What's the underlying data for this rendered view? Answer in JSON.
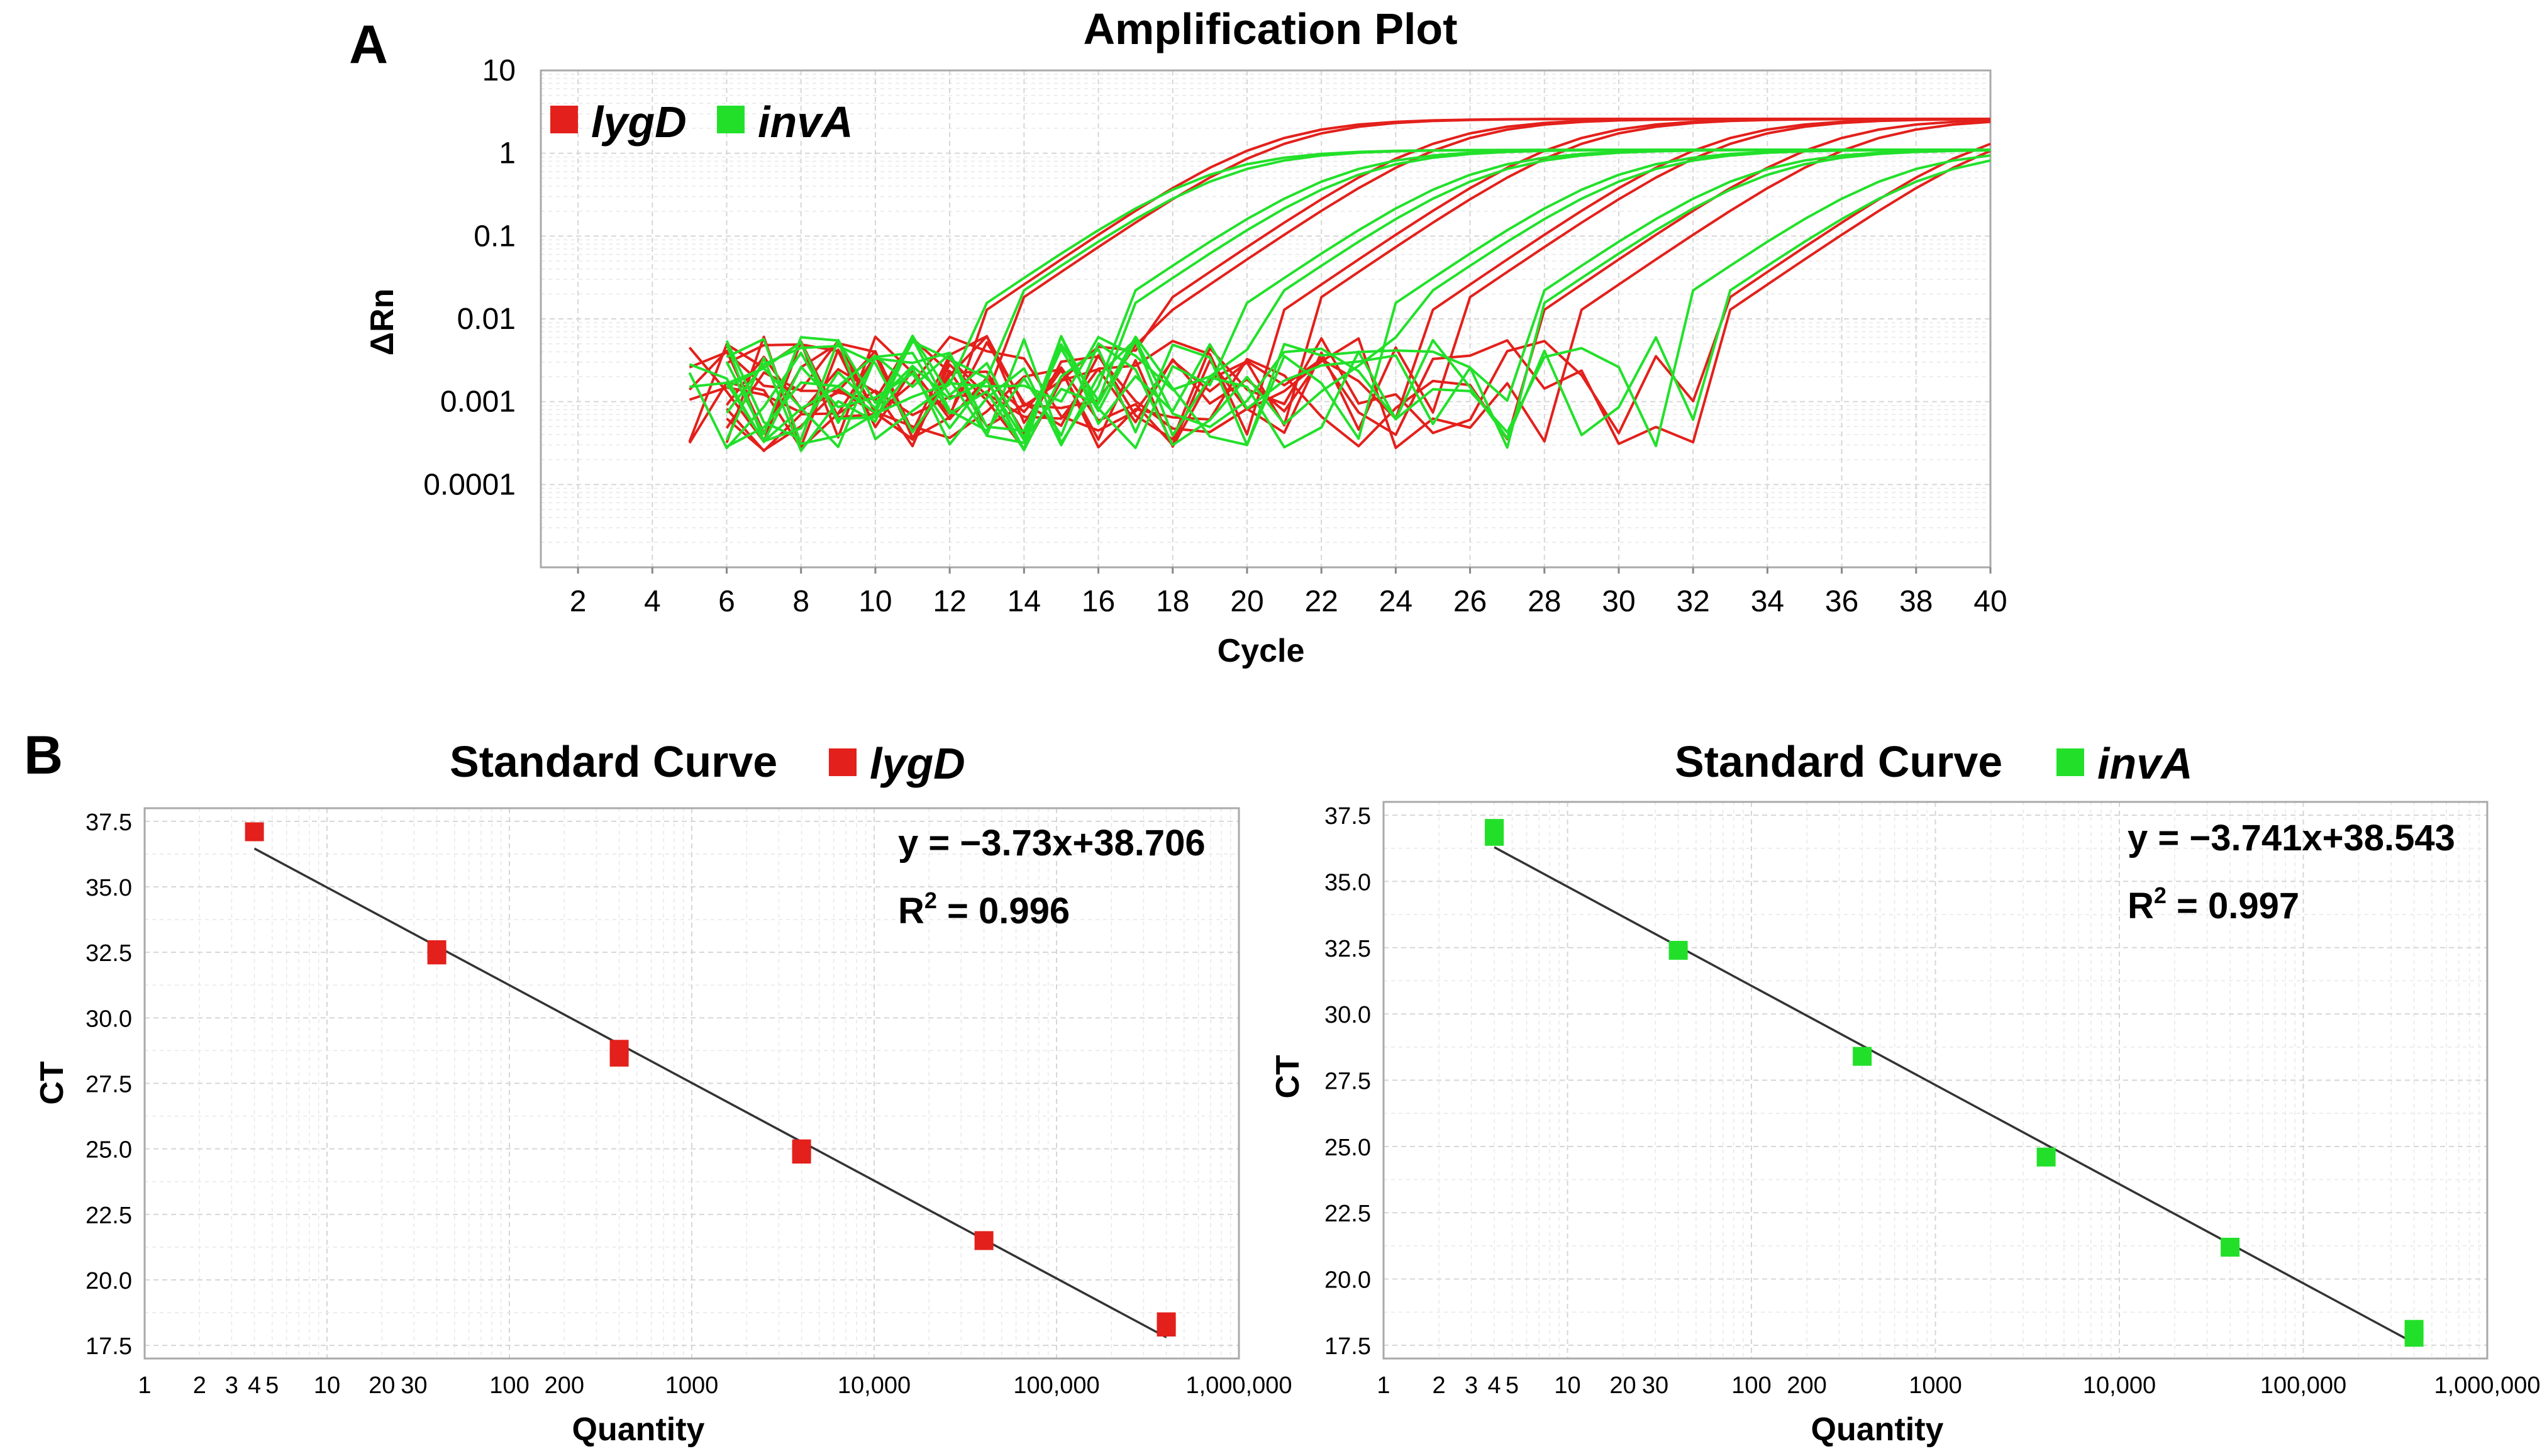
{
  "panel_labels": {
    "a": "A",
    "b": "B"
  },
  "colors": {
    "lygD": "#e3201b",
    "invA": "#22e02a",
    "fit_line": "#333333"
  },
  "chart_data": [
    {
      "type": "line",
      "title": "Amplification Plot",
      "xlabel": "Cycle",
      "ylabel": "ΔRn",
      "xlim": [
        1,
        40
      ],
      "ylim": [
        1e-05,
        10
      ],
      "y_scale": "log",
      "x_ticks": [
        "2",
        "4",
        "6",
        "8",
        "10",
        "12",
        "14",
        "16",
        "18",
        "20",
        "22",
        "24",
        "26",
        "28",
        "30",
        "32",
        "34",
        "36",
        "38",
        "40"
      ],
      "y_ticks": [
        "10",
        "1",
        "0.1",
        "0.01",
        "0.001",
        "0.0001"
      ],
      "legend": [
        {
          "name": "lygD",
          "color": "#e3201b"
        },
        {
          "name": "invA",
          "color": "#22e02a"
        }
      ],
      "series": [
        {
          "name": "lygD",
          "color": "#e3201b",
          "plateau": 2.6,
          "ct_estimates": [
            17.0,
            17.5,
            21.5,
            22.0,
            25.0,
            25.5,
            29.0,
            29.5,
            32.0,
            33.0,
            36.5,
            37.0
          ]
        },
        {
          "name": "invA",
          "color": "#22e02a",
          "plateau": 1.1,
          "ct_estimates": [
            15.5,
            16.0,
            19.0,
            19.5,
            22.5,
            23.0,
            26.5,
            27.0,
            30.0,
            30.5,
            34.0,
            35.0
          ]
        }
      ]
    },
    {
      "type": "scatter",
      "title": "Standard Curve",
      "legend_label": "lygD",
      "color": "#e3201b",
      "xlabel": "Quantity",
      "ylabel": "CT",
      "x_scale": "log",
      "xlim": [
        1,
        1000000
      ],
      "ylim": [
        17.0,
        38.0
      ],
      "x_ticks": [
        "1",
        "2",
        "3",
        "4",
        "5",
        "10",
        "20",
        "30",
        "100",
        "200",
        "1000",
        "10,000",
        "100,000",
        "1,000,000"
      ],
      "y_ticks": [
        "37.5",
        "35.0",
        "32.5",
        "30.0",
        "27.5",
        "25.0",
        "22.5",
        "20.0",
        "17.5"
      ],
      "points": [
        {
          "x": 4,
          "y": 37.1
        },
        {
          "x": 40,
          "y": 32.4
        },
        {
          "x": 40,
          "y": 32.6
        },
        {
          "x": 400,
          "y": 28.5
        },
        {
          "x": 400,
          "y": 28.8
        },
        {
          "x": 4000,
          "y": 24.8
        },
        {
          "x": 4000,
          "y": 25.0
        },
        {
          "x": 40000,
          "y": 21.5
        },
        {
          "x": 400000,
          "y": 18.2
        },
        {
          "x": 400000,
          "y": 18.4
        }
      ],
      "fit": {
        "slope": -3.73,
        "intercept": 38.706
      },
      "equation": "y = −3.73x+38.706",
      "r2_label": "R",
      "r2_sup": "2",
      "r2_value": " = 0.996"
    },
    {
      "type": "scatter",
      "title": "Standard Curve",
      "legend_label": "invA",
      "color": "#22e02a",
      "xlabel": "Quantity",
      "ylabel": "CT",
      "x_scale": "log",
      "xlim": [
        1,
        1000000
      ],
      "ylim": [
        17.0,
        38.0
      ],
      "x_ticks": [
        "1",
        "2",
        "3",
        "4",
        "5",
        "10",
        "20",
        "30",
        "100",
        "200",
        "1000",
        "10,000",
        "100,000",
        "1,000,000"
      ],
      "y_ticks": [
        "37.5",
        "35.0",
        "32.5",
        "30.0",
        "27.5",
        "25.0",
        "22.5",
        "20.0",
        "17.5"
      ],
      "points": [
        {
          "x": 4,
          "y": 36.7
        },
        {
          "x": 4,
          "y": 37.0
        },
        {
          "x": 40,
          "y": 32.4
        },
        {
          "x": 400,
          "y": 28.4
        },
        {
          "x": 4000,
          "y": 24.6
        },
        {
          "x": 40000,
          "y": 21.2
        },
        {
          "x": 400000,
          "y": 17.8
        },
        {
          "x": 400000,
          "y": 18.1
        }
      ],
      "fit": {
        "slope": -3.741,
        "intercept": 38.543
      },
      "equation": "y = −3.741x+38.543",
      "r2_label": "R",
      "r2_sup": "2",
      "r2_value": " = 0.997"
    }
  ]
}
